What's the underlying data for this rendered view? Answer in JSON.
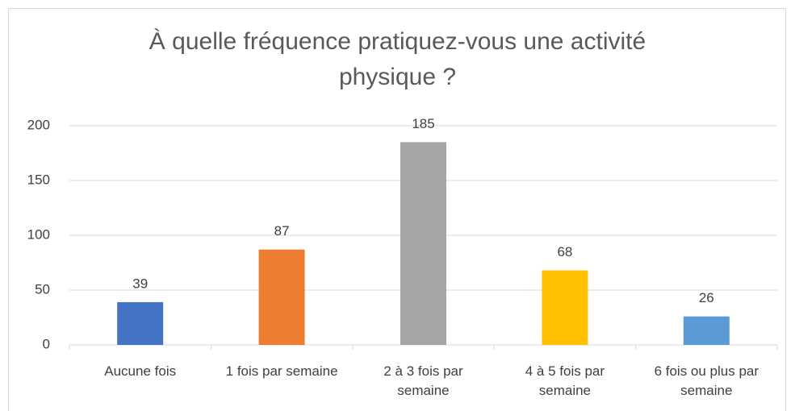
{
  "chart_data": {
    "type": "bar",
    "title": "À quelle fréquence pratiquez-vous une activité physique ?",
    "categories": [
      "Aucune fois",
      "1 fois par semaine",
      "2 à 3 fois par semaine",
      "4 à 5 fois par semaine",
      "6 fois ou plus par semaine"
    ],
    "values": [
      39,
      87,
      185,
      68,
      26
    ],
    "colors": [
      "#4472c4",
      "#ed7d31",
      "#a5a5a5",
      "#ffc000",
      "#5b9bd5"
    ],
    "ylim": [
      0,
      200
    ],
    "yticks": [
      0,
      50,
      100,
      150,
      200
    ],
    "grid": true
  }
}
